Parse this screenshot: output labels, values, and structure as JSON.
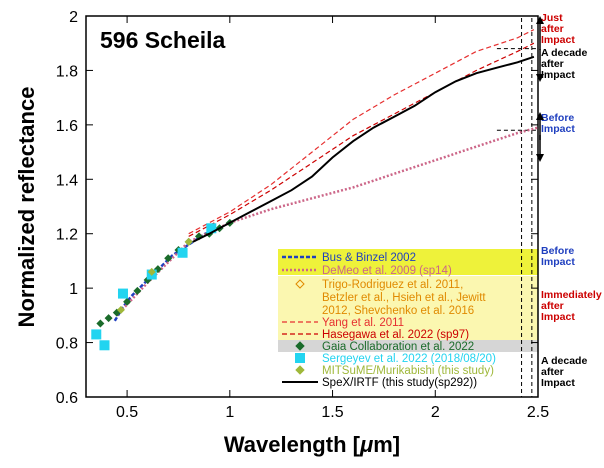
{
  "chart_data": {
    "type": "line",
    "title": "596 Scheila",
    "xlabel": "Wavelength [",
    "xlabel_unit_greek": "μ",
    "xlabel_unit_rest": "m]",
    "ylabel": "Normalized reflectance",
    "xlim": [
      0.3,
      2.5
    ],
    "ylim": [
      0.6,
      2.0
    ],
    "x_ticks": [
      "0.5",
      "1",
      "1.5",
      "2",
      "2.5"
    ],
    "x_tick_values": [
      0.5,
      1.0,
      1.5,
      2.0,
      2.5
    ],
    "y_ticks": [
      "0.6",
      "0.8",
      "1",
      "1.2",
      "1.4",
      "1.6",
      "1.8",
      "2"
    ],
    "y_tick_values": [
      0.6,
      0.8,
      1.0,
      1.2,
      1.4,
      1.6,
      1.8,
      2.0
    ],
    "grid": false,
    "legend_position": "bottom-right",
    "reference_lines": [
      {
        "x": 2.42,
        "style": "dashed"
      },
      {
        "x": 2.47,
        "style": "dashed"
      }
    ],
    "series": [
      {
        "name": "Bus & Binzel 2002",
        "color": "#1f3fbf",
        "style": "dashed-thick",
        "x": [
          0.44,
          0.48,
          0.52,
          0.56,
          0.6,
          0.64,
          0.68,
          0.72,
          0.76,
          0.8,
          0.84,
          0.88,
          0.92
        ],
        "y": [
          0.88,
          0.93,
          0.97,
          1.0,
          1.03,
          1.06,
          1.09,
          1.12,
          1.14,
          1.16,
          1.18,
          1.2,
          1.21
        ]
      },
      {
        "name": "DeMeo et al. 2009 (sp14)",
        "color": "#cc6688",
        "style": "dotted",
        "x": [
          0.45,
          0.6,
          0.8,
          1.0,
          1.2,
          1.4,
          1.6,
          1.8,
          2.0,
          2.2,
          2.4,
          2.5
        ],
        "y": [
          0.9,
          1.02,
          1.17,
          1.24,
          1.29,
          1.33,
          1.37,
          1.42,
          1.47,
          1.52,
          1.57,
          1.59
        ]
      },
      {
        "name": "Trigo-Rodriguez et al. 2011, Betzler et al., Hsieh et al., Jewitt 2012, Shevchenko et al. 2016",
        "color": "#e08a00",
        "style": "open-diamond",
        "x": [],
        "y": []
      },
      {
        "name": "Yang et al. 2011",
        "color": "#e63030",
        "style": "dashed",
        "x": [
          0.8,
          1.0,
          1.2,
          1.4,
          1.6,
          1.8,
          2.0,
          2.2,
          2.4,
          2.48
        ],
        "y": [
          1.2,
          1.28,
          1.38,
          1.5,
          1.62,
          1.71,
          1.79,
          1.87,
          1.92,
          1.95
        ]
      },
      {
        "name": "Hasegawa et al. 2022 (sp97)",
        "color": "#cc0000",
        "style": "dashed",
        "x": [
          0.8,
          1.0,
          1.2,
          1.4,
          1.6,
          1.8,
          2.0,
          2.2,
          2.4,
          2.48
        ],
        "y": [
          1.19,
          1.27,
          1.36,
          1.46,
          1.56,
          1.64,
          1.72,
          1.8,
          1.87,
          1.9
        ]
      },
      {
        "name": "Gaia Collaboration et al. 2022",
        "color": "#1a6b2a",
        "style": "diamond",
        "x": [
          0.37,
          0.41,
          0.45,
          0.5,
          0.55,
          0.6,
          0.65,
          0.7,
          0.75,
          0.8,
          0.85,
          0.9,
          0.95,
          1.0
        ],
        "y": [
          0.87,
          0.89,
          0.91,
          0.95,
          0.99,
          1.03,
          1.07,
          1.11,
          1.14,
          1.17,
          1.19,
          1.2,
          1.22,
          1.24
        ]
      },
      {
        "name": "Sergeyev et al. 2022 (2018/08/20)",
        "color": "#22d4f0",
        "style": "square",
        "x": [
          0.35,
          0.39,
          0.48,
          0.62,
          0.77,
          0.91
        ],
        "y": [
          0.83,
          0.79,
          0.98,
          1.05,
          1.13,
          1.22
        ]
      },
      {
        "name": "MITSuME/Murikabishi (this study)",
        "color": "#9fb83a",
        "style": "diamond",
        "x": [
          0.47,
          0.62,
          0.8
        ],
        "y": [
          0.92,
          1.06,
          1.17
        ]
      },
      {
        "name": "SpeX/IRTF (this study(sp292))",
        "color": "#000000",
        "style": "solid",
        "x": [
          0.82,
          0.9,
          1.0,
          1.1,
          1.2,
          1.3,
          1.4,
          1.5,
          1.6,
          1.7,
          1.8,
          1.9,
          2.0,
          2.1,
          2.2,
          2.3,
          2.4,
          2.48
        ],
        "y": [
          1.17,
          1.2,
          1.24,
          1.28,
          1.32,
          1.36,
          1.41,
          1.48,
          1.54,
          1.59,
          1.63,
          1.67,
          1.72,
          1.76,
          1.79,
          1.81,
          1.83,
          1.85
        ]
      }
    ],
    "annotations": [
      {
        "lines": [
          "Just",
          "after",
          "Impact"
        ],
        "color": "#cc0000"
      },
      {
        "lines": [
          "A decade",
          "after",
          "Impact"
        ],
        "color": "#000000"
      },
      {
        "lines": [
          "Before",
          "Impact"
        ],
        "color": "#1f3fbf"
      },
      {
        "lines": [
          "Before",
          "Impact"
        ],
        "color": "#1f3fbf"
      },
      {
        "lines": [
          "Immediately",
          "after",
          "Impact"
        ],
        "color": "#cc0000"
      },
      {
        "lines": [
          "A decade",
          "after",
          "Impact"
        ],
        "color": "#000000"
      }
    ],
    "legend_bands": [
      {
        "color": "#eef23a",
        "label": "Before Impact"
      },
      {
        "color": "#fbf7b0",
        "label": "Immediately after Impact"
      },
      {
        "color": "#d6d6d6",
        "label": "A decade after Impact"
      }
    ]
  }
}
